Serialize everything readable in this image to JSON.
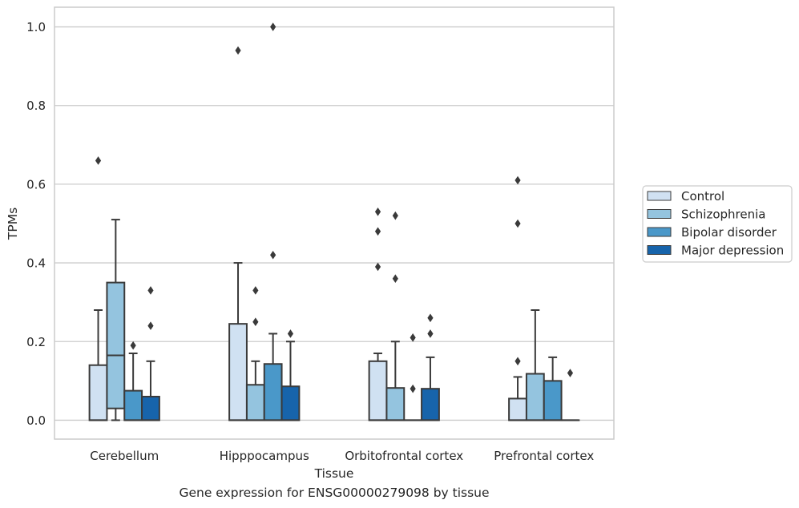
{
  "chart_data": {
    "type": "box",
    "xlabel": "Tissue",
    "ylabel": "TPMs",
    "caption": "Gene expression for ENSG00000279098 by tissue",
    "categories": [
      "Cerebellum",
      "Hipppocampus",
      "Orbitofrontal cortex",
      "Prefrontal cortex"
    ],
    "ylim": [
      -0.048,
      1.05
    ],
    "yticks": [
      0.0,
      0.2,
      0.4,
      0.6,
      0.8,
      1.0
    ],
    "ytick_labels": [
      "0.0",
      "0.2",
      "0.4",
      "0.6",
      "0.8",
      "1.0"
    ],
    "grid": "horizontal",
    "legend_position": "right",
    "series": [
      {
        "name": "Control",
        "color": "#d0e1f2",
        "boxes": [
          {
            "q1": 0.0,
            "median": 0.0,
            "q3": 0.14,
            "whislo": 0.0,
            "whishi": 0.28,
            "outliers": [
              0.66
            ]
          },
          {
            "q1": 0.0,
            "median": 0.0,
            "q3": 0.245,
            "whislo": 0.0,
            "whishi": 0.4,
            "outliers": [
              0.94
            ]
          },
          {
            "q1": 0.0,
            "median": 0.0,
            "q3": 0.15,
            "whislo": 0.0,
            "whishi": 0.17,
            "outliers": [
              0.53,
              0.48,
              0.39
            ]
          },
          {
            "q1": 0.0,
            "median": 0.0,
            "q3": 0.055,
            "whislo": 0.0,
            "whishi": 0.11,
            "outliers": [
              0.61,
              0.5,
              0.15
            ]
          }
        ]
      },
      {
        "name": "Schizophrenia",
        "color": "#94c4df",
        "boxes": [
          {
            "q1": 0.03,
            "median": 0.165,
            "q3": 0.35,
            "whislo": 0.0,
            "whishi": 0.51,
            "outliers": []
          },
          {
            "q1": 0.0,
            "median": 0.0,
            "q3": 0.09,
            "whislo": 0.0,
            "whishi": 0.15,
            "outliers": [
              0.33,
              0.25
            ]
          },
          {
            "q1": 0.0,
            "median": 0.0,
            "q3": 0.082,
            "whislo": 0.0,
            "whishi": 0.2,
            "outliers": [
              0.52,
              0.36
            ]
          },
          {
            "q1": 0.0,
            "median": 0.0,
            "q3": 0.118,
            "whislo": 0.0,
            "whishi": 0.28,
            "outliers": []
          }
        ]
      },
      {
        "name": "Bipolar disorder",
        "color": "#4a98c9",
        "boxes": [
          {
            "q1": 0.0,
            "median": 0.0,
            "q3": 0.075,
            "whislo": 0.0,
            "whishi": 0.17,
            "outliers": [
              0.19
            ]
          },
          {
            "q1": 0.0,
            "median": 0.0,
            "q3": 0.143,
            "whislo": 0.0,
            "whishi": 0.22,
            "outliers": [
              1.0,
              0.42
            ]
          },
          {
            "q1": 0.0,
            "median": 0.0,
            "q3": 0.0,
            "whislo": 0.0,
            "whishi": 0.0,
            "outliers": [
              0.21,
              0.08
            ]
          },
          {
            "q1": 0.0,
            "median": 0.0,
            "q3": 0.1,
            "whislo": 0.0,
            "whishi": 0.16,
            "outliers": []
          }
        ]
      },
      {
        "name": "Major depression",
        "color": "#1764ab",
        "boxes": [
          {
            "q1": 0.0,
            "median": 0.0,
            "q3": 0.06,
            "whislo": 0.0,
            "whishi": 0.15,
            "outliers": [
              0.33,
              0.24
            ]
          },
          {
            "q1": 0.0,
            "median": 0.0,
            "q3": 0.086,
            "whislo": 0.0,
            "whishi": 0.2,
            "outliers": [
              0.22
            ]
          },
          {
            "q1": 0.0,
            "median": 0.0,
            "q3": 0.08,
            "whislo": 0.0,
            "whishi": 0.16,
            "outliers": [
              0.26,
              0.22
            ]
          },
          {
            "q1": 0.0,
            "median": 0.0,
            "q3": 0.0,
            "whislo": 0.0,
            "whishi": 0.0,
            "outliers": [
              0.12
            ]
          }
        ]
      }
    ]
  }
}
